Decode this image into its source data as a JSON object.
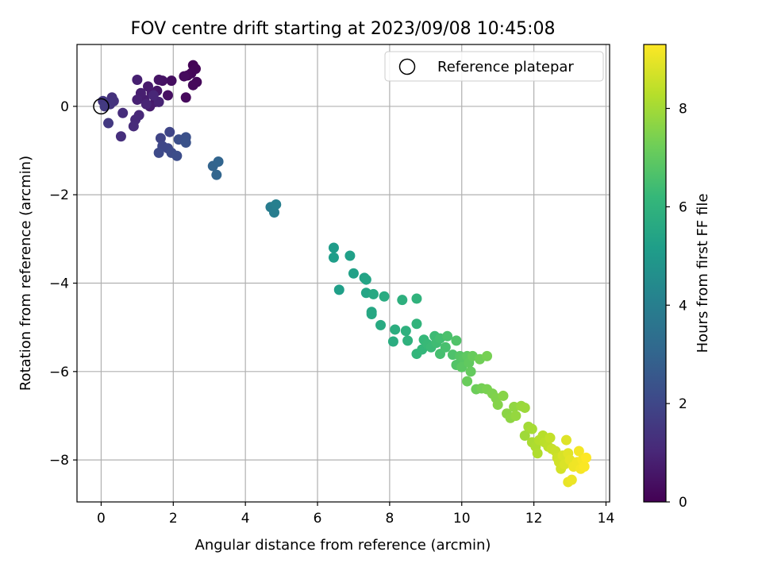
{
  "chart_data": {
    "type": "scatter",
    "title": "FOV centre drift starting at 2023/09/08 10:45:08",
    "xlabel": "Angular distance from reference (arcmin)",
    "ylabel": "Rotation from reference (arcmin)",
    "xlim": [
      -0.67,
      14.1
    ],
    "ylim": [
      -8.95,
      1.4
    ],
    "xticks": [
      0,
      2,
      4,
      6,
      8,
      10,
      12,
      14
    ],
    "yticks": [
      -8,
      -6,
      -4,
      -2,
      0
    ],
    "grid": true,
    "legend": {
      "placement": "upper right",
      "entries": [
        "Reference platepar"
      ]
    },
    "reference_point": {
      "x": 0,
      "y": 0
    },
    "colorbar": {
      "label": "Hours from first FF file",
      "colormap": "viridis",
      "range": [
        0,
        9.3
      ],
      "ticks": [
        0,
        2,
        4,
        6,
        8
      ],
      "colors": [
        "#440154",
        "#482878",
        "#3e4989",
        "#31688e",
        "#26828e",
        "#1f9e89",
        "#35b779",
        "#6ece58",
        "#b5de2b",
        "#fde725"
      ]
    },
    "points": [
      {
        "x": 2.55,
        "y": 0.93,
        "h": 0.05
      },
      {
        "x": 2.62,
        "y": 0.85,
        "h": 0.1
      },
      {
        "x": 2.5,
        "y": 0.75,
        "h": 0.12
      },
      {
        "x": 2.4,
        "y": 0.7,
        "h": 0.15
      },
      {
        "x": 2.65,
        "y": 0.55,
        "h": 0.18
      },
      {
        "x": 2.55,
        "y": 0.48,
        "h": 0.2
      },
      {
        "x": 2.35,
        "y": 0.2,
        "h": 0.22
      },
      {
        "x": 2.3,
        "y": 0.68,
        "h": 0.25
      },
      {
        "x": 1.95,
        "y": 0.58,
        "h": 0.35
      },
      {
        "x": 1.85,
        "y": 0.25,
        "h": 0.4
      },
      {
        "x": 1.7,
        "y": 0.58,
        "h": 0.45
      },
      {
        "x": 1.6,
        "y": 0.6,
        "h": 0.5
      },
      {
        "x": 1.55,
        "y": 0.35,
        "h": 0.55
      },
      {
        "x": 1.5,
        "y": 0.1,
        "h": 0.6
      },
      {
        "x": 1.4,
        "y": 0.3,
        "h": 0.65
      },
      {
        "x": 1.3,
        "y": 0.45,
        "h": 0.7
      },
      {
        "x": 1.35,
        "y": 0.0,
        "h": 0.72
      },
      {
        "x": 1.2,
        "y": 0.15,
        "h": 0.75
      },
      {
        "x": 1.1,
        "y": 0.3,
        "h": 0.8
      },
      {
        "x": 1.0,
        "y": 0.6,
        "h": 0.82
      },
      {
        "x": 1.0,
        "y": 0.15,
        "h": 0.85
      },
      {
        "x": 1.6,
        "y": 0.1,
        "h": 0.9
      },
      {
        "x": 1.25,
        "y": 0.05,
        "h": 0.95
      },
      {
        "x": 1.45,
        "y": 0.25,
        "h": 1.0
      },
      {
        "x": 1.05,
        "y": -0.2,
        "h": 1.05
      },
      {
        "x": 0.95,
        "y": -0.3,
        "h": 1.1
      },
      {
        "x": 0.9,
        "y": -0.45,
        "h": 1.15
      },
      {
        "x": 0.6,
        "y": -0.15,
        "h": 1.2
      },
      {
        "x": 0.55,
        "y": -0.68,
        "h": 1.25
      },
      {
        "x": 0.3,
        "y": 0.2,
        "h": 1.3
      },
      {
        "x": 0.35,
        "y": 0.12,
        "h": 1.35
      },
      {
        "x": 0.25,
        "y": 0.05,
        "h": 1.4
      },
      {
        "x": 0.15,
        "y": 0.05,
        "h": 1.45
      },
      {
        "x": 0.05,
        "y": 0.12,
        "h": 1.5
      },
      {
        "x": 0.2,
        "y": -0.38,
        "h": 1.55
      },
      {
        "x": 0.1,
        "y": 0.0,
        "h": 1.6
      },
      {
        "x": 1.65,
        "y": -0.72,
        "h": 1.9
      },
      {
        "x": 1.9,
        "y": -0.58,
        "h": 1.95
      },
      {
        "x": 1.7,
        "y": -0.9,
        "h": 2.0
      },
      {
        "x": 1.85,
        "y": -0.95,
        "h": 2.05
      },
      {
        "x": 1.6,
        "y": -1.05,
        "h": 2.1
      },
      {
        "x": 1.95,
        "y": -1.05,
        "h": 2.15
      },
      {
        "x": 2.1,
        "y": -1.12,
        "h": 2.2
      },
      {
        "x": 2.15,
        "y": -0.75,
        "h": 2.25
      },
      {
        "x": 2.35,
        "y": -0.7,
        "h": 2.3
      },
      {
        "x": 2.35,
        "y": -0.82,
        "h": 2.35
      },
      {
        "x": 3.1,
        "y": -1.35,
        "h": 2.95
      },
      {
        "x": 3.25,
        "y": -1.25,
        "h": 3.0
      },
      {
        "x": 3.2,
        "y": -1.55,
        "h": 3.05
      },
      {
        "x": 4.7,
        "y": -2.28,
        "h": 3.9
      },
      {
        "x": 4.8,
        "y": -2.4,
        "h": 3.95
      },
      {
        "x": 4.85,
        "y": -2.22,
        "h": 4.0
      },
      {
        "x": 6.45,
        "y": -3.2,
        "h": 5.1
      },
      {
        "x": 6.45,
        "y": -3.42,
        "h": 5.15
      },
      {
        "x": 6.6,
        "y": -4.15,
        "h": 5.2
      },
      {
        "x": 6.9,
        "y": -3.38,
        "h": 5.25
      },
      {
        "x": 7.0,
        "y": -3.78,
        "h": 5.3
      },
      {
        "x": 7.3,
        "y": -3.88,
        "h": 5.35
      },
      {
        "x": 7.35,
        "y": -3.92,
        "h": 5.4
      },
      {
        "x": 7.35,
        "y": -4.22,
        "h": 5.45
      },
      {
        "x": 7.5,
        "y": -4.65,
        "h": 5.5
      },
      {
        "x": 7.5,
        "y": -4.7,
        "h": 5.55
      },
      {
        "x": 7.55,
        "y": -4.25,
        "h": 5.6
      },
      {
        "x": 7.75,
        "y": -4.95,
        "h": 5.65
      },
      {
        "x": 7.85,
        "y": -4.3,
        "h": 5.7
      },
      {
        "x": 8.1,
        "y": -5.32,
        "h": 5.75
      },
      {
        "x": 8.15,
        "y": -5.05,
        "h": 5.8
      },
      {
        "x": 8.35,
        "y": -4.38,
        "h": 5.85
      },
      {
        "x": 8.45,
        "y": -5.08,
        "h": 5.9
      },
      {
        "x": 8.5,
        "y": -5.3,
        "h": 5.95
      },
      {
        "x": 8.75,
        "y": -4.35,
        "h": 6.0
      },
      {
        "x": 8.75,
        "y": -4.92,
        "h": 6.05
      },
      {
        "x": 8.75,
        "y": -5.6,
        "h": 6.1
      },
      {
        "x": 8.9,
        "y": -5.5,
        "h": 6.15
      },
      {
        "x": 8.95,
        "y": -5.28,
        "h": 6.2
      },
      {
        "x": 9.05,
        "y": -5.38,
        "h": 6.25
      },
      {
        "x": 9.15,
        "y": -5.45,
        "h": 6.3
      },
      {
        "x": 9.25,
        "y": -5.2,
        "h": 6.35
      },
      {
        "x": 9.3,
        "y": -5.35,
        "h": 6.4
      },
      {
        "x": 9.4,
        "y": -5.25,
        "h": 6.45
      },
      {
        "x": 9.4,
        "y": -5.6,
        "h": 6.5
      },
      {
        "x": 9.55,
        "y": -5.45,
        "h": 6.55
      },
      {
        "x": 9.6,
        "y": -5.2,
        "h": 6.6
      },
      {
        "x": 9.75,
        "y": -5.62,
        "h": 6.65
      },
      {
        "x": 9.85,
        "y": -5.3,
        "h": 6.7
      },
      {
        "x": 9.85,
        "y": -5.85,
        "h": 6.75
      },
      {
        "x": 9.95,
        "y": -5.65,
        "h": 6.8
      },
      {
        "x": 10.05,
        "y": -5.7,
        "h": 6.85
      },
      {
        "x": 10.0,
        "y": -5.9,
        "h": 6.9
      },
      {
        "x": 10.15,
        "y": -5.65,
        "h": 6.95
      },
      {
        "x": 10.2,
        "y": -5.8,
        "h": 7.0
      },
      {
        "x": 10.25,
        "y": -6.0,
        "h": 7.05
      },
      {
        "x": 10.3,
        "y": -5.65,
        "h": 7.1
      },
      {
        "x": 10.15,
        "y": -6.22,
        "h": 7.15
      },
      {
        "x": 10.4,
        "y": -6.4,
        "h": 7.2
      },
      {
        "x": 10.5,
        "y": -5.72,
        "h": 7.25
      },
      {
        "x": 10.55,
        "y": -6.38,
        "h": 7.3
      },
      {
        "x": 10.7,
        "y": -5.65,
        "h": 7.35
      },
      {
        "x": 10.7,
        "y": -6.4,
        "h": 7.4
      },
      {
        "x": 10.85,
        "y": -6.5,
        "h": 7.45
      },
      {
        "x": 10.95,
        "y": -6.6,
        "h": 7.5
      },
      {
        "x": 11.0,
        "y": -6.75,
        "h": 7.55
      },
      {
        "x": 11.15,
        "y": -6.55,
        "h": 7.6
      },
      {
        "x": 11.25,
        "y": -6.95,
        "h": 7.65
      },
      {
        "x": 11.35,
        "y": -7.05,
        "h": 7.7
      },
      {
        "x": 11.45,
        "y": -6.8,
        "h": 7.75
      },
      {
        "x": 11.5,
        "y": -7.0,
        "h": 7.8
      },
      {
        "x": 11.65,
        "y": -6.78,
        "h": 7.85
      },
      {
        "x": 11.75,
        "y": -6.82,
        "h": 7.9
      },
      {
        "x": 11.75,
        "y": -7.45,
        "h": 7.95
      },
      {
        "x": 11.85,
        "y": -7.25,
        "h": 8.0
      },
      {
        "x": 11.95,
        "y": -7.3,
        "h": 8.05
      },
      {
        "x": 11.95,
        "y": -7.6,
        "h": 8.1
      },
      {
        "x": 12.05,
        "y": -7.7,
        "h": 8.15
      },
      {
        "x": 12.1,
        "y": -7.85,
        "h": 8.2
      },
      {
        "x": 12.15,
        "y": -7.55,
        "h": 8.25
      },
      {
        "x": 12.25,
        "y": -7.45,
        "h": 8.3
      },
      {
        "x": 12.3,
        "y": -7.6,
        "h": 8.35
      },
      {
        "x": 12.4,
        "y": -7.7,
        "h": 8.4
      },
      {
        "x": 12.45,
        "y": -7.5,
        "h": 8.45
      },
      {
        "x": 12.5,
        "y": -7.75,
        "h": 8.5
      },
      {
        "x": 12.6,
        "y": -7.8,
        "h": 8.55
      },
      {
        "x": 12.65,
        "y": -7.95,
        "h": 8.6
      },
      {
        "x": 12.7,
        "y": -8.05,
        "h": 8.65
      },
      {
        "x": 12.75,
        "y": -8.2,
        "h": 8.7
      },
      {
        "x": 12.8,
        "y": -7.9,
        "h": 8.75
      },
      {
        "x": 12.85,
        "y": -8.1,
        "h": 8.8
      },
      {
        "x": 12.9,
        "y": -7.55,
        "h": 8.85
      },
      {
        "x": 12.95,
        "y": -7.85,
        "h": 8.9
      },
      {
        "x": 13.0,
        "y": -8.0,
        "h": 8.95
      },
      {
        "x": 12.95,
        "y": -8.5,
        "h": 9.0
      },
      {
        "x": 13.05,
        "y": -8.45,
        "h": 9.05
      },
      {
        "x": 13.1,
        "y": -8.15,
        "h": 9.1
      },
      {
        "x": 13.2,
        "y": -8.05,
        "h": 9.12
      },
      {
        "x": 13.25,
        "y": -7.8,
        "h": 9.15
      },
      {
        "x": 13.3,
        "y": -8.2,
        "h": 9.18
      },
      {
        "x": 13.35,
        "y": -8.0,
        "h": 9.2
      },
      {
        "x": 13.4,
        "y": -8.15,
        "h": 9.25
      },
      {
        "x": 13.45,
        "y": -7.95,
        "h": 9.3
      }
    ]
  }
}
